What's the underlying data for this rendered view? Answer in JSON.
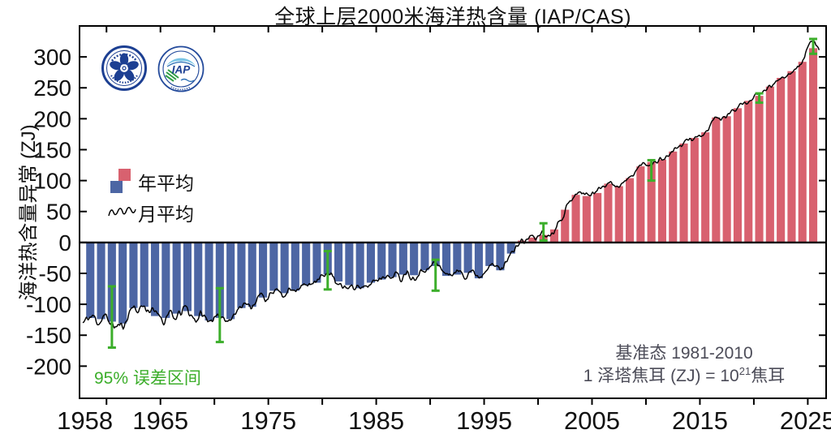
{
  "title": "全球上层2000米海洋热含量 (IAP/CAS)",
  "y_axis_label": "海洋热含量异常 (ZJ)",
  "legend": {
    "annual_label": "年平均",
    "monthly_label": "月平均"
  },
  "error_note": "95% 误差区间",
  "baseline_note": "基准态  1981-2010",
  "unit_note": {
    "prefix": "1 泽塔焦耳 (ZJ) = 10",
    "superscript": "21",
    "suffix": "焦耳"
  },
  "logos": {
    "cas": "中国科学院",
    "iap": "IAP"
  },
  "chart_data": {
    "type": "bar+line",
    "title": "全球上层2000米海洋热含量 (IAP/CAS)",
    "ylabel": "海洋热含量异常 (ZJ)",
    "unit": "ZJ",
    "baseline_period": "1981-2010",
    "start_year": 1958,
    "annual_anomaly_ZJ": [
      -122,
      -124,
      -128,
      -131,
      -106,
      -104,
      -119,
      -122,
      -115,
      -111,
      -119,
      -126,
      -122,
      -124,
      -106,
      -104,
      -89,
      -78,
      -82,
      -78,
      -69,
      -65,
      -52,
      -63,
      -69,
      -74,
      -65,
      -60,
      -56,
      -52,
      -53,
      -45,
      -38,
      -54,
      -52,
      -49,
      -58,
      -38,
      -45,
      -18,
      3,
      8,
      12,
      21,
      53,
      77,
      75,
      80,
      95,
      91,
      104,
      123,
      130,
      134,
      147,
      160,
      169,
      178,
      202,
      204,
      217,
      229,
      237,
      252,
      266,
      277,
      292,
      314
    ],
    "error_bars_95": [
      {
        "year": 1960,
        "low": -170,
        "high": -71
      },
      {
        "year": 1970,
        "low": -161,
        "high": -74
      },
      {
        "year": 1980,
        "low": -76,
        "high": -14
      },
      {
        "year": 1990,
        "low": -78,
        "high": -28
      },
      {
        "year": 2000,
        "low": 3,
        "high": 31
      },
      {
        "year": 2010,
        "low": 100,
        "high": 133
      },
      {
        "year": 2020,
        "low": 226,
        "high": 241
      },
      {
        "year": 2025,
        "low": 305,
        "high": 329
      }
    ],
    "monthly_noise": {
      "seed": 11,
      "amp_start": 16,
      "amp_end": 7,
      "end_bump": 14
    },
    "xlim": [
      1957.5,
      2026.7
    ],
    "ylim": [
      -252,
      350
    ],
    "yticks": [
      -200,
      -150,
      -100,
      -50,
      0,
      50,
      100,
      150,
      200,
      250,
      300
    ],
    "xticks_minor": [
      1960,
      1965,
      1970,
      1975,
      1980,
      1985,
      1990,
      1995,
      2000,
      2005,
      2010,
      2015,
      2020,
      2025
    ],
    "xtick_labels": [
      1958,
      1965,
      1975,
      1985,
      1995,
      2005,
      2015,
      2025
    ],
    "grid": false,
    "legend_position": "upper-left-inside",
    "colors": {
      "positive_bar": "#D8616F",
      "negative_bar": "#4D66A4",
      "monthly_line": "#000000",
      "error_bar": "#3CAE2B",
      "note_text": "#4C4C58",
      "axis": "#000000"
    }
  }
}
